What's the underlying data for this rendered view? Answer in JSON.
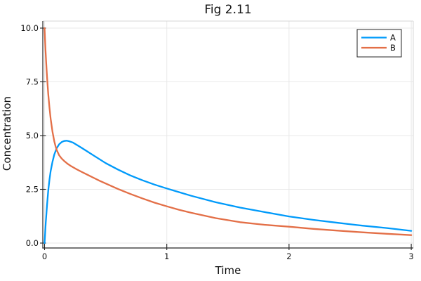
{
  "chart_data": {
    "type": "line",
    "title": "Fig 2.11",
    "xlabel": "Time",
    "ylabel": "Concentration",
    "xlim": [
      0,
      3
    ],
    "ylim": [
      0,
      10
    ],
    "grid": true,
    "legend_position": "top-right",
    "xticks": {
      "values": [
        0,
        1,
        2,
        3
      ],
      "labels": [
        "0",
        "1",
        "2",
        "3"
      ]
    },
    "yticks": {
      "values": [
        0,
        2.5,
        5,
        7.5,
        10
      ],
      "labels": [
        "0.0",
        "2.5",
        "5.0",
        "7.5",
        "10.0"
      ]
    },
    "series": [
      {
        "name": "A",
        "color": "#009AFA",
        "points": [
          [
            0,
            0
          ],
          [
            0.005,
            0.5
          ],
          [
            0.01,
            0.95
          ],
          [
            0.02,
            1.75
          ],
          [
            0.03,
            2.42
          ],
          [
            0.04,
            2.95
          ],
          [
            0.05,
            3.35
          ],
          [
            0.065,
            3.78
          ],
          [
            0.08,
            4.12
          ],
          [
            0.1,
            4.42
          ],
          [
            0.12,
            4.6
          ],
          [
            0.14,
            4.7
          ],
          [
            0.16,
            4.75
          ],
          [
            0.18,
            4.76
          ],
          [
            0.2,
            4.74
          ],
          [
            0.23,
            4.68
          ],
          [
            0.26,
            4.58
          ],
          [
            0.3,
            4.44
          ],
          [
            0.35,
            4.26
          ],
          [
            0.4,
            4.08
          ],
          [
            0.45,
            3.9
          ],
          [
            0.5,
            3.72
          ],
          [
            0.6,
            3.42
          ],
          [
            0.7,
            3.15
          ],
          [
            0.8,
            2.92
          ],
          [
            0.9,
            2.72
          ],
          [
            1,
            2.54
          ],
          [
            1.1,
            2.37
          ],
          [
            1.2,
            2.2
          ],
          [
            1.4,
            1.9
          ],
          [
            1.6,
            1.65
          ],
          [
            1.8,
            1.44
          ],
          [
            2,
            1.24
          ],
          [
            2.2,
            1.08
          ],
          [
            2.4,
            0.94
          ],
          [
            2.6,
            0.81
          ],
          [
            2.8,
            0.7
          ],
          [
            3,
            0.57
          ]
        ]
      },
      {
        "name": "B",
        "color": "#E36F47",
        "points": [
          [
            0,
            10
          ],
          [
            0.004,
            9.45
          ],
          [
            0.008,
            8.95
          ],
          [
            0.013,
            8.4
          ],
          [
            0.02,
            7.75
          ],
          [
            0.03,
            6.95
          ],
          [
            0.04,
            6.3
          ],
          [
            0.05,
            5.78
          ],
          [
            0.065,
            5.18
          ],
          [
            0.08,
            4.73
          ],
          [
            0.09,
            4.5
          ],
          [
            0.1,
            4.32
          ],
          [
            0.12,
            4.08
          ],
          [
            0.14,
            3.93
          ],
          [
            0.16,
            3.82
          ],
          [
            0.19,
            3.68
          ],
          [
            0.22,
            3.57
          ],
          [
            0.26,
            3.44
          ],
          [
            0.3,
            3.32
          ],
          [
            0.35,
            3.18
          ],
          [
            0.4,
            3.04
          ],
          [
            0.45,
            2.9
          ],
          [
            0.5,
            2.77
          ],
          [
            0.6,
            2.52
          ],
          [
            0.7,
            2.29
          ],
          [
            0.8,
            2.08
          ],
          [
            0.9,
            1.88
          ],
          [
            1,
            1.71
          ],
          [
            1.1,
            1.55
          ],
          [
            1.2,
            1.41
          ],
          [
            1.4,
            1.16
          ],
          [
            1.6,
            0.97
          ],
          [
            1.8,
            0.85
          ],
          [
            2,
            0.76
          ],
          [
            2.2,
            0.66
          ],
          [
            2.4,
            0.58
          ],
          [
            2.6,
            0.5
          ],
          [
            2.8,
            0.43
          ],
          [
            3,
            0.37
          ]
        ]
      }
    ],
    "style_colors": {
      "grid": "#e9e9e9",
      "spine_dark": "#262626",
      "spine_light": "#d7d7d7",
      "background": "#ffffff"
    }
  }
}
